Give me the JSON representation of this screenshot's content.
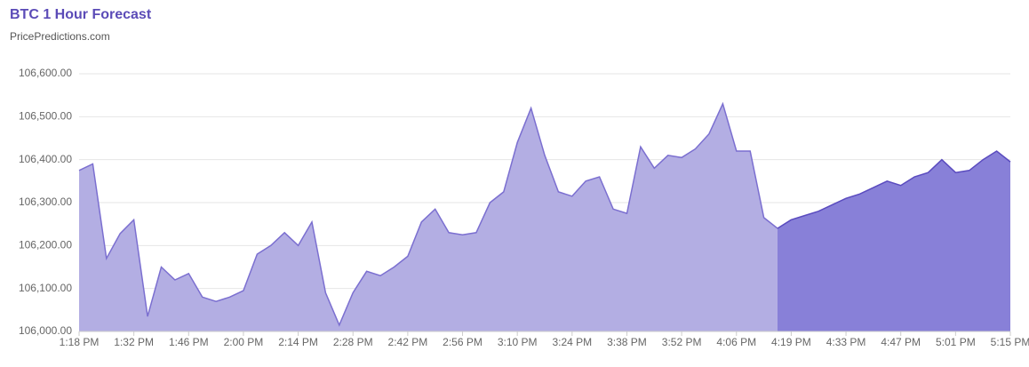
{
  "chart_data": {
    "type": "area",
    "title": "BTC 1 Hour Forecast",
    "subtitle": "PricePredictions.com",
    "categories": [
      "1:18 PM",
      null,
      null,
      null,
      "1:32 PM",
      null,
      null,
      null,
      "1:46 PM",
      null,
      null,
      null,
      "2:00 PM",
      null,
      null,
      null,
      "2:14 PM",
      null,
      null,
      null,
      "2:28 PM",
      null,
      null,
      null,
      "2:42 PM",
      null,
      null,
      null,
      "2:56 PM",
      null,
      null,
      null,
      "3:10 PM",
      null,
      null,
      null,
      "3:24 PM",
      null,
      null,
      null,
      "3:38 PM",
      null,
      null,
      null,
      "3:52 PM",
      null,
      null,
      null,
      "4:06 PM",
      null,
      null,
      null,
      "4:19 PM",
      null,
      null,
      null,
      "4:33 PM",
      null,
      null,
      null,
      "4:47 PM",
      null,
      null,
      null,
      "5:01 PM",
      null,
      null,
      null,
      "5:15 PM"
    ],
    "series": [
      {
        "color": "#7b6fd0",
        "fill": "#b3aee3",
        "values": [
          106375,
          106390,
          106170,
          106228,
          106260,
          106035,
          106150,
          106120,
          106135,
          106080,
          106070,
          106080,
          106095,
          106180,
          106200,
          106230,
          106200,
          106255,
          106090,
          106015,
          106090,
          106140,
          106130,
          106150,
          106175,
          106255,
          106285,
          106230,
          106225,
          106230,
          106300,
          106325,
          106440,
          106520,
          106410,
          106325,
          106315,
          106350,
          106360,
          106285,
          106275,
          106430,
          106380,
          106410,
          106405,
          106425,
          106460,
          106530,
          106420,
          106420,
          106265,
          106240,
          null,
          null,
          null,
          null,
          null,
          null,
          null,
          null,
          null,
          null,
          null,
          null,
          null,
          null,
          null,
          null,
          null
        ]
      },
      {
        "color": "#5a4bbf",
        "fill": "#8880d8",
        "values": [
          null,
          null,
          null,
          null,
          null,
          null,
          null,
          null,
          null,
          null,
          null,
          null,
          null,
          null,
          null,
          null,
          null,
          null,
          null,
          null,
          null,
          null,
          null,
          null,
          null,
          null,
          null,
          null,
          null,
          null,
          null,
          null,
          null,
          null,
          null,
          null,
          null,
          null,
          null,
          null,
          null,
          null,
          null,
          null,
          null,
          null,
          null,
          null,
          null,
          null,
          null,
          106240,
          106260,
          106270,
          106280,
          106295,
          106310,
          106320,
          106335,
          106350,
          106340,
          106360,
          106370,
          106400,
          106370,
          106375,
          106400,
          106420,
          106395
        ]
      }
    ],
    "ylim": [
      106000,
      106600
    ],
    "yticks": [
      {
        "value": 106000,
        "label": "106,000.00"
      },
      {
        "value": 106100,
        "label": "106,100.00"
      },
      {
        "value": 106200,
        "label": "106,200.00"
      },
      {
        "value": 106300,
        "label": "106,300.00"
      },
      {
        "value": 106400,
        "label": "106,400.00"
      },
      {
        "value": 106500,
        "label": "106,500.00"
      },
      {
        "value": 106600,
        "label": "106,600.00"
      }
    ],
    "grid": true
  }
}
